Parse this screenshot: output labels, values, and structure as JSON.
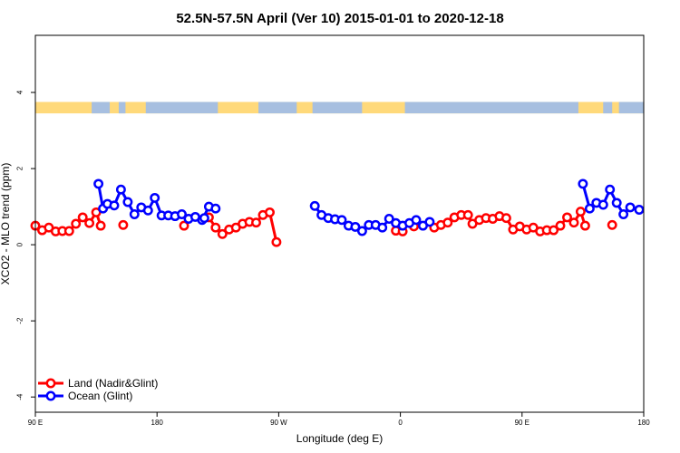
{
  "chart_data": {
    "type": "line",
    "title": "52.5N-57.5N April (Ver 10)   2015-01-01 to 2020-12-18",
    "xlabel": "Longitude (deg E)",
    "ylabel": "XCO2 - MLO trend (ppm)",
    "xlim": [
      -90,
      180
    ],
    "ylim": [
      -4.4,
      5.5
    ],
    "x_ticks": [
      {
        "value": -90,
        "label": "90 E"
      },
      {
        "value": -36,
        "label": "180"
      },
      {
        "value": 18,
        "label": "90 W"
      },
      {
        "value": 72,
        "label": "0"
      },
      {
        "value": 126,
        "label": "90 E"
      },
      {
        "value": 180,
        "label": "180"
      }
    ],
    "y_ticks": [
      {
        "value": -4,
        "label": "-4"
      },
      {
        "value": -2,
        "label": "-2"
      },
      {
        "value": 0,
        "label": "0"
      },
      {
        "value": 2,
        "label": "2"
      },
      {
        "value": 4,
        "label": "4"
      }
    ],
    "land_mask_band": {
      "y_min": 3.45,
      "y_max": 3.75,
      "land_color": "#FFD97A",
      "ocean_color": "#A7BFE0"
    },
    "legend": {
      "placement": "bottom-left"
    },
    "series": [
      {
        "name": "Land (Nadir&Glint)",
        "color": "#FF0000",
        "segments": [
          [
            [
              -90,
              0.5
            ],
            [
              -87,
              0.38
            ],
            [
              -84,
              0.45
            ],
            [
              -81,
              0.35
            ],
            [
              -78,
              0.36
            ],
            [
              -75,
              0.36
            ],
            [
              -72,
              0.55
            ],
            [
              -69,
              0.72
            ],
            [
              -66,
              0.57
            ],
            [
              -63,
              0.85
            ],
            [
              -61,
              0.5
            ]
          ],
          [
            [
              -51,
              0.52
            ]
          ],
          [
            [
              -24,
              0.5
            ]
          ],
          [
            [
              -13,
              0.72
            ],
            [
              -10,
              0.45
            ],
            [
              -7,
              0.28
            ],
            [
              -4,
              0.4
            ],
            [
              -1,
              0.45
            ],
            [
              2,
              0.55
            ],
            [
              5,
              0.6
            ],
            [
              8,
              0.58
            ],
            [
              11,
              0.78
            ],
            [
              14,
              0.85
            ],
            [
              17,
              0.07
            ]
          ],
          [
            [
              70,
              0.37
            ],
            [
              73,
              0.35
            ]
          ],
          [
            [
              78,
              0.48
            ]
          ],
          [
            [
              87,
              0.45
            ],
            [
              90,
              0.52
            ],
            [
              93,
              0.58
            ],
            [
              96,
              0.72
            ],
            [
              99,
              0.78
            ],
            [
              102,
              0.78
            ],
            [
              104,
              0.55
            ],
            [
              107,
              0.65
            ],
            [
              110,
              0.7
            ],
            [
              113,
              0.68
            ],
            [
              116,
              0.75
            ],
            [
              119,
              0.7
            ],
            [
              122,
              0.4
            ],
            [
              125,
              0.48
            ],
            [
              128,
              0.4
            ],
            [
              131,
              0.45
            ],
            [
              134,
              0.35
            ],
            [
              137,
              0.38
            ],
            [
              140,
              0.38
            ],
            [
              143,
              0.5
            ],
            [
              146,
              0.72
            ],
            [
              149,
              0.58
            ],
            [
              152,
              0.87
            ],
            [
              154,
              0.5
            ]
          ],
          [
            [
              166,
              0.52
            ]
          ]
        ]
      },
      {
        "name": "Ocean (Glint)",
        "color": "#0000FF",
        "segments": [
          [
            [
              -62,
              1.6
            ],
            [
              -60,
              0.95
            ],
            [
              -58,
              1.07
            ],
            [
              -55,
              1.03
            ],
            [
              -52,
              1.45
            ],
            [
              -49,
              1.12
            ],
            [
              -46,
              0.8
            ],
            [
              -43,
              0.98
            ],
            [
              -40,
              0.9
            ],
            [
              -37,
              1.23
            ],
            [
              -34,
              0.77
            ],
            [
              -31,
              0.77
            ],
            [
              -28,
              0.75
            ],
            [
              -25,
              0.8
            ],
            [
              -22,
              0.68
            ],
            [
              -19,
              0.73
            ],
            [
              -16,
              0.65
            ],
            [
              -13,
              1.0
            ],
            [
              -10,
              0.95
            ]
          ],
          [
            [
              -15,
              0.7
            ]
          ],
          [
            [
              34,
              1.02
            ],
            [
              37,
              0.78
            ],
            [
              40,
              0.7
            ],
            [
              43,
              0.67
            ],
            [
              46,
              0.65
            ],
            [
              49,
              0.5
            ],
            [
              52,
              0.47
            ],
            [
              55,
              0.36
            ],
            [
              58,
              0.52
            ],
            [
              61,
              0.52
            ],
            [
              64,
              0.45
            ],
            [
              67,
              0.68
            ],
            [
              70,
              0.57
            ],
            [
              73,
              0.5
            ],
            [
              76,
              0.57
            ],
            [
              79,
              0.65
            ],
            [
              82,
              0.5
            ],
            [
              85,
              0.6
            ]
          ],
          [
            [
              153,
              1.6
            ],
            [
              156,
              0.95
            ],
            [
              159,
              1.1
            ],
            [
              162,
              1.05
            ],
            [
              165,
              1.45
            ],
            [
              168,
              1.1
            ],
            [
              171,
              0.8
            ],
            [
              174,
              0.98
            ],
            [
              178,
              0.92
            ]
          ]
        ]
      }
    ]
  }
}
